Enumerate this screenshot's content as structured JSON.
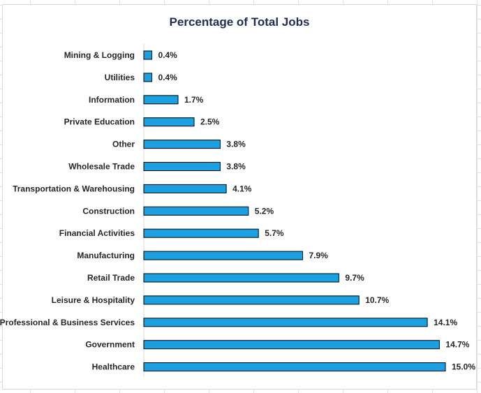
{
  "chart_data": {
    "type": "bar",
    "orientation": "horizontal",
    "title": "Percentage of Total Jobs",
    "categories": [
      "Mining & Logging",
      "Utilities",
      "Information",
      "Private Education",
      "Other",
      "Wholesale Trade",
      "Transportation & Warehousing",
      "Construction",
      "Financial Activities",
      "Manufacturing",
      "Retail Trade",
      "Leisure & Hospitality",
      "Professional & Business Services",
      "Government",
      "Healthcare"
    ],
    "values": [
      0.4,
      0.4,
      1.7,
      2.5,
      3.8,
      3.8,
      4.1,
      5.2,
      5.7,
      7.9,
      9.7,
      10.7,
      14.1,
      14.7,
      15.0
    ],
    "value_labels": [
      "0.4%",
      "0.4%",
      "1.7%",
      "2.5%",
      "3.8%",
      "3.8%",
      "4.1%",
      "5.2%",
      "5.7%",
      "7.9%",
      "9.7%",
      "10.7%",
      "14.1%",
      "14.7%",
      "15.0%"
    ],
    "xlim": [
      0,
      15.0
    ],
    "grid": false,
    "legend": "none",
    "colors": {
      "bar": "#1BA1E2",
      "bar_edge": "#000000",
      "title": "#1F2D52",
      "axis": "#d9d9d9"
    }
  }
}
